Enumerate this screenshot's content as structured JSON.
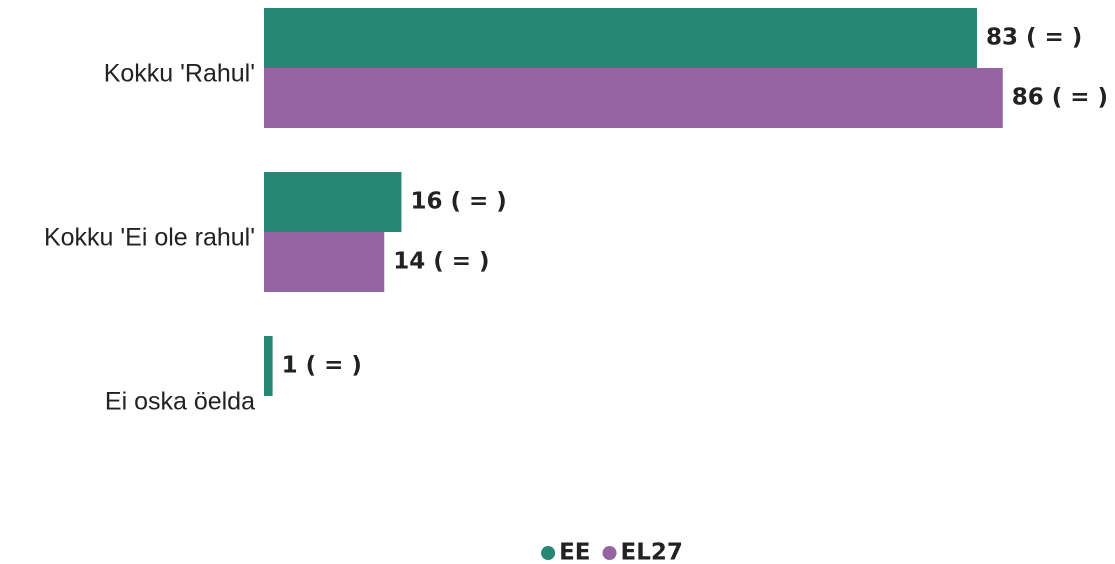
{
  "chart_data": {
    "type": "bar",
    "orientation": "horizontal",
    "categories": [
      "Kokku 'Rahul'",
      "Kokku 'Ei ole rahul'",
      "Ei oska öelda"
    ],
    "series": [
      {
        "name": "EE",
        "color": "#268873",
        "values": [
          83,
          16,
          1
        ],
        "value_labels": [
          "83 ( = )",
          "16 ( = )",
          "1 ( = )"
        ]
      },
      {
        "name": "EL27",
        "color": "#9663a3",
        "values": [
          86,
          14,
          null
        ],
        "value_labels": [
          "86 ( = )",
          "14 ( = )",
          null
        ]
      }
    ],
    "xlim": [
      0,
      100
    ],
    "legend": "bottom"
  }
}
